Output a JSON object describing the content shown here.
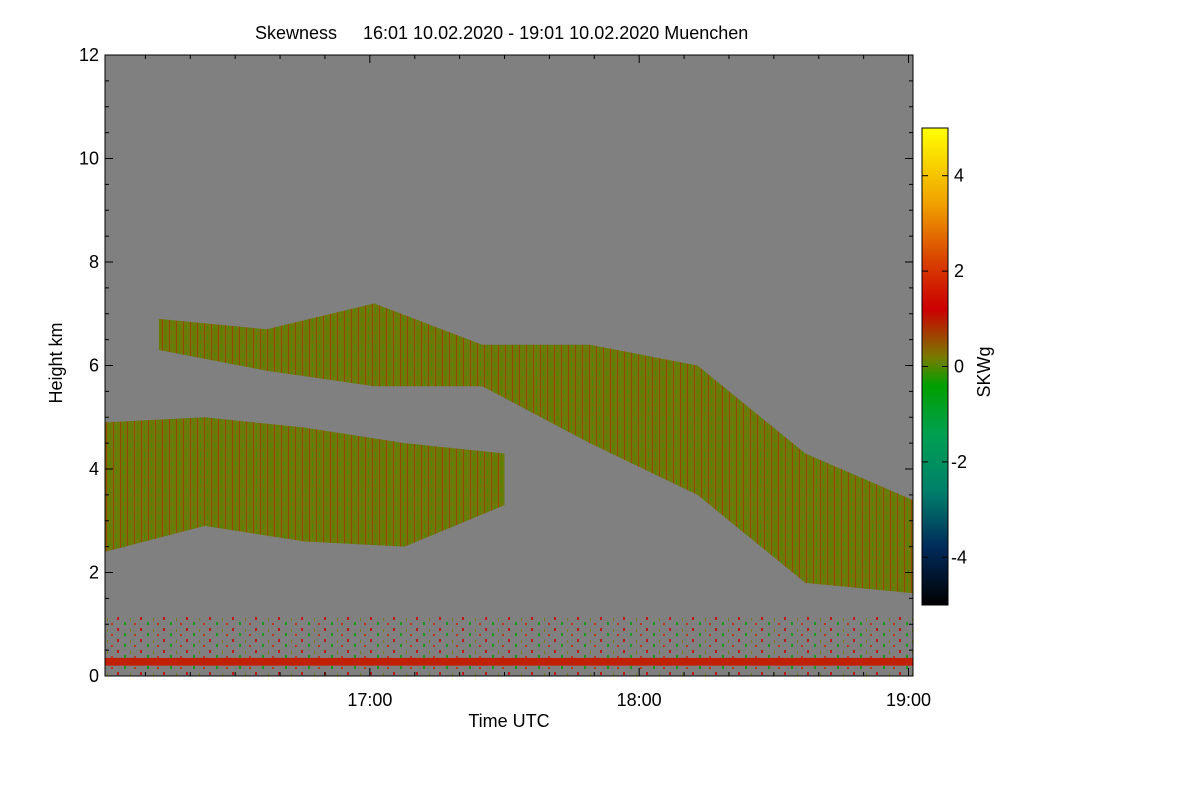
{
  "chart_data": {
    "type": "heatmap",
    "title_left": "Skewness",
    "title_right": "16:01 10.02.2020 - 19:01 10.02.2020 Muenchen",
    "xlabel": "Time UTC",
    "ylabel": "Height km",
    "xlim": [
      "16:01",
      "19:01"
    ],
    "ylim": [
      0,
      12
    ],
    "xticks": [
      "17:00",
      "18:00",
      "19:00"
    ],
    "yticks": [
      0,
      2,
      4,
      6,
      8,
      10,
      12
    ],
    "colorbar": {
      "label": "SKWg",
      "range": [
        -5,
        5
      ],
      "ticks": [
        4,
        2,
        0,
        -2,
        -4
      ],
      "colors": [
        "#000000",
        "#002a5a",
        "#008080",
        "#00a050",
        "#00a000",
        "#7a7a00",
        "#cc0000",
        "#e06000",
        "#f0a000",
        "#ffff00"
      ]
    },
    "background_color": "#808080",
    "cloud_layers": [
      {
        "name": "",
        "start": "16:13",
        "end": "19:01",
        "top_km": [
          6.9,
          6.7,
          7.2,
          6.4,
          6.4,
          6.0,
          4.3,
          3.4
        ],
        "bottom_km": [
          6.3,
          5.9,
          5.6,
          5.6,
          4.5,
          3.5,
          1.8,
          1.6
        ]
      },
      {
        "name": "",
        "start": "16:01",
        "end": "17:30",
        "top_km": [
          4.9,
          5.0,
          4.8,
          4.5,
          4.3
        ],
        "bottom_km": [
          2.4,
          2.9,
          2.6,
          2.5,
          3.3
        ]
      }
    ],
    "near_surface_noise_km": [
      0,
      1.2
    ]
  }
}
